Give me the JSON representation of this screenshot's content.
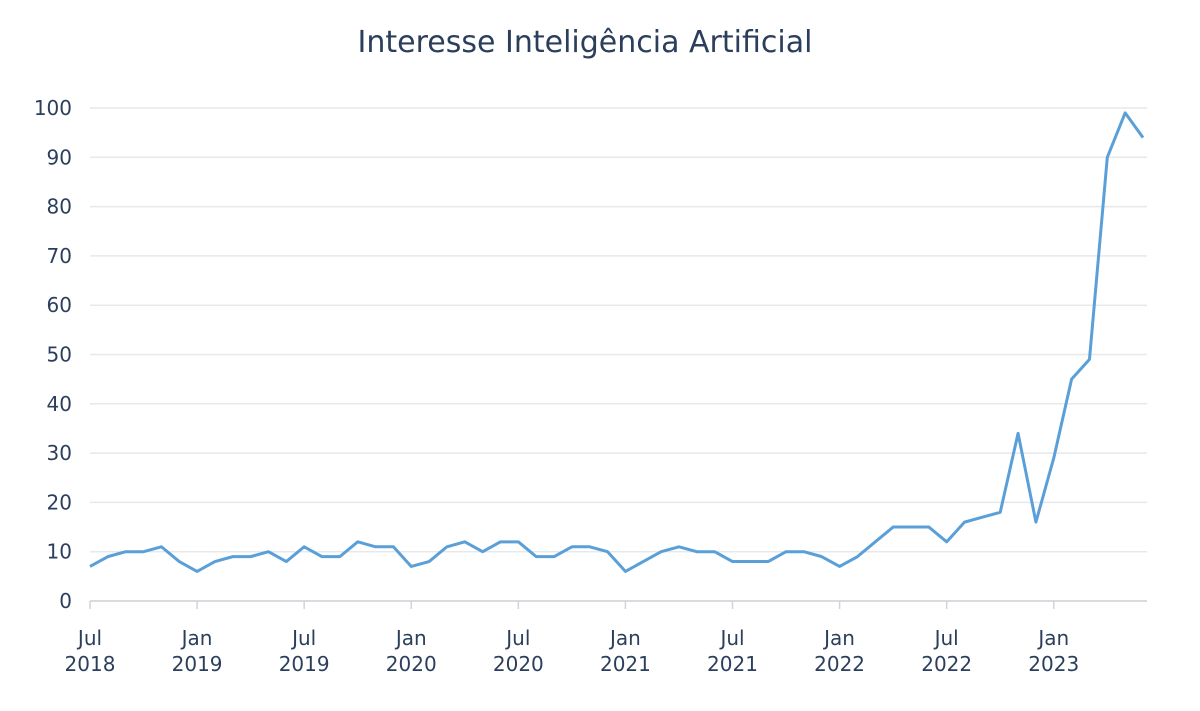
{
  "chart_data": {
    "type": "line",
    "title": "Interesse Inteligência Artificial",
    "x": [
      "2018-07",
      "2018-08",
      "2018-09",
      "2018-10",
      "2018-11",
      "2018-12",
      "2019-01",
      "2019-02",
      "2019-03",
      "2019-04",
      "2019-05",
      "2019-06",
      "2019-07",
      "2019-08",
      "2019-09",
      "2019-10",
      "2019-11",
      "2019-12",
      "2020-01",
      "2020-02",
      "2020-03",
      "2020-04",
      "2020-05",
      "2020-06",
      "2020-07",
      "2020-08",
      "2020-09",
      "2020-10",
      "2020-11",
      "2020-12",
      "2021-01",
      "2021-02",
      "2021-03",
      "2021-04",
      "2021-05",
      "2021-06",
      "2021-07",
      "2021-08",
      "2021-09",
      "2021-10",
      "2021-11",
      "2021-12",
      "2022-01",
      "2022-02",
      "2022-03",
      "2022-04",
      "2022-05",
      "2022-06",
      "2022-07",
      "2022-08",
      "2022-09",
      "2022-10",
      "2022-11",
      "2022-12",
      "2023-01",
      "2023-02",
      "2023-03",
      "2023-04",
      "2023-05",
      "2023-06"
    ],
    "series": [
      {
        "name": "Interesse",
        "color": "#5a9fd8",
        "values": [
          7,
          9,
          10,
          10,
          11,
          8,
          6,
          8,
          9,
          9,
          10,
          8,
          11,
          9,
          9,
          12,
          11,
          11,
          7,
          8,
          11,
          12,
          10,
          12,
          12,
          9,
          9,
          11,
          11,
          10,
          6,
          8,
          10,
          11,
          10,
          10,
          8,
          8,
          8,
          10,
          10,
          9,
          7,
          9,
          12,
          15,
          15,
          15,
          12,
          16,
          17,
          18,
          34,
          16,
          29,
          45,
          49,
          90,
          99,
          94
        ]
      }
    ],
    "xlim": [
      "2018-07",
      "2023-06"
    ],
    "xticks": [
      {
        "value": "2018-07",
        "label": [
          "Jul",
          "2018"
        ]
      },
      {
        "value": "2019-01",
        "label": [
          "Jan",
          "2019"
        ]
      },
      {
        "value": "2019-07",
        "label": [
          "Jul",
          "2019"
        ]
      },
      {
        "value": "2020-01",
        "label": [
          "Jan",
          "2020"
        ]
      },
      {
        "value": "2020-07",
        "label": [
          "Jul",
          "2020"
        ]
      },
      {
        "value": "2021-01",
        "label": [
          "Jan",
          "2021"
        ]
      },
      {
        "value": "2021-07",
        "label": [
          "Jul",
          "2021"
        ]
      },
      {
        "value": "2022-01",
        "label": [
          "Jan",
          "2022"
        ]
      },
      {
        "value": "2022-07",
        "label": [
          "Jul",
          "2022"
        ]
      },
      {
        "value": "2023-01",
        "label": [
          "Jan",
          "2023"
        ]
      }
    ],
    "ylim": [
      0,
      100
    ],
    "yticks": [
      0,
      10,
      20,
      30,
      40,
      50,
      60,
      70,
      80,
      90,
      100
    ],
    "grid": true
  }
}
